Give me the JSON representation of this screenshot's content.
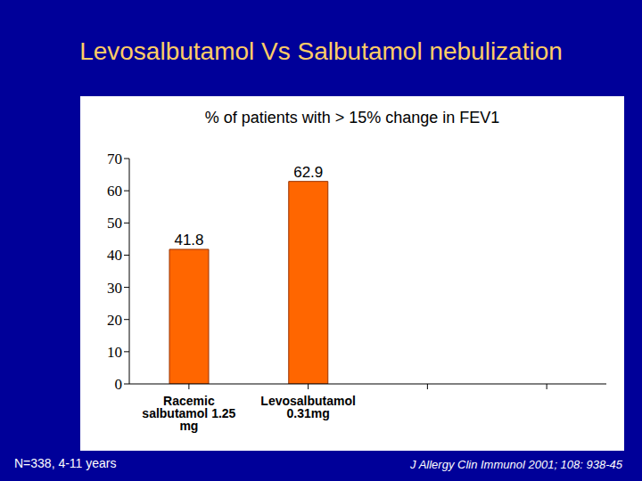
{
  "chart_data": {
    "type": "bar",
    "title": "Levosalbutamol Vs Salbutamol nebulization",
    "subtitle": "% of patients with > 15% change in FEV1",
    "categories": [
      "Racemic salbutamol 1.25 mg",
      "Levosalbutamol 0.31mg",
      null,
      null
    ],
    "values": [
      41.8,
      62.9,
      null,
      null
    ],
    "color": "#ff6600",
    "ylim": [
      0,
      70
    ],
    "yticks": [
      0,
      10,
      20,
      30,
      40,
      50,
      60,
      70
    ],
    "data_labels": true,
    "annotations": [
      "N=338, 4-11 years",
      "J Allergy Clin Immunol 2001; 108: 938-45"
    ]
  }
}
